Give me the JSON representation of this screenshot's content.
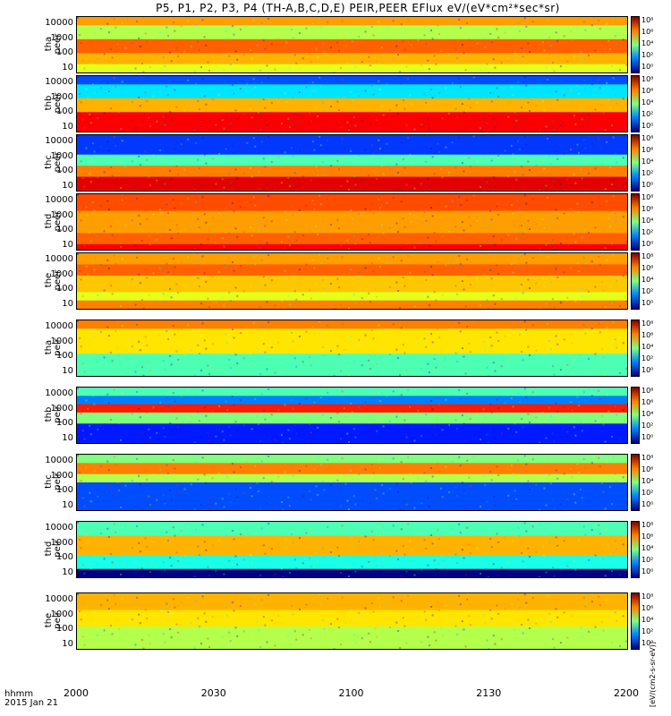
{
  "title": "P5, P1, P2, P3, P4 (TH-A,B,C,D,E) PEIR,PEER EFlux eV/(eV*cm²*sec*sr)",
  "colorbar_unit": "[eV/(cm2-s-sr-eV)]",
  "x_axis": {
    "ticks": [
      "2000",
      "2030",
      "2100",
      "2130",
      "2200"
    ],
    "label_top": "hhmm",
    "label_bottom": "2015 Jan 21"
  },
  "y_ticks": [
    "10000",
    "1000",
    "100",
    "10"
  ],
  "cbar_ticks": [
    "10⁸",
    "10⁶",
    "10⁴",
    "10²",
    "10⁰"
  ],
  "chart_data": {
    "type": "heatmap",
    "title": "P5, P1, P2, P3, P4 (TH-A,B,C,D,E) PEIR,PEER EFlux eV/(eV*cm²*sec*sr)",
    "x_range": [
      "2015-01-21 20:00",
      "2015-01-21 22:00"
    ],
    "y_scale": "log",
    "y_range": [
      5,
      30000
    ],
    "colorbar_scale": "log",
    "colorbar_range": [
      1,
      100000000
    ],
    "panels": [
      {
        "id": "tha-peer",
        "label": "tha\npeer"
      },
      {
        "id": "thb-peer",
        "label": "thb\npeer"
      },
      {
        "id": "thc-peer",
        "label": "thc\npeer"
      },
      {
        "id": "thd-peer",
        "label": "thd\npeer"
      },
      {
        "id": "the-peer",
        "label": "the\npeer"
      },
      {
        "id": "tha-peir",
        "label": "tha\npeir"
      },
      {
        "id": "thb-peir",
        "label": "thb\npeir"
      },
      {
        "id": "thc-peir",
        "label": "thc\npeir"
      },
      {
        "id": "thd-peir",
        "label": "thd\npeir"
      },
      {
        "id": "the-peir",
        "label": "the\npeir"
      }
    ]
  }
}
